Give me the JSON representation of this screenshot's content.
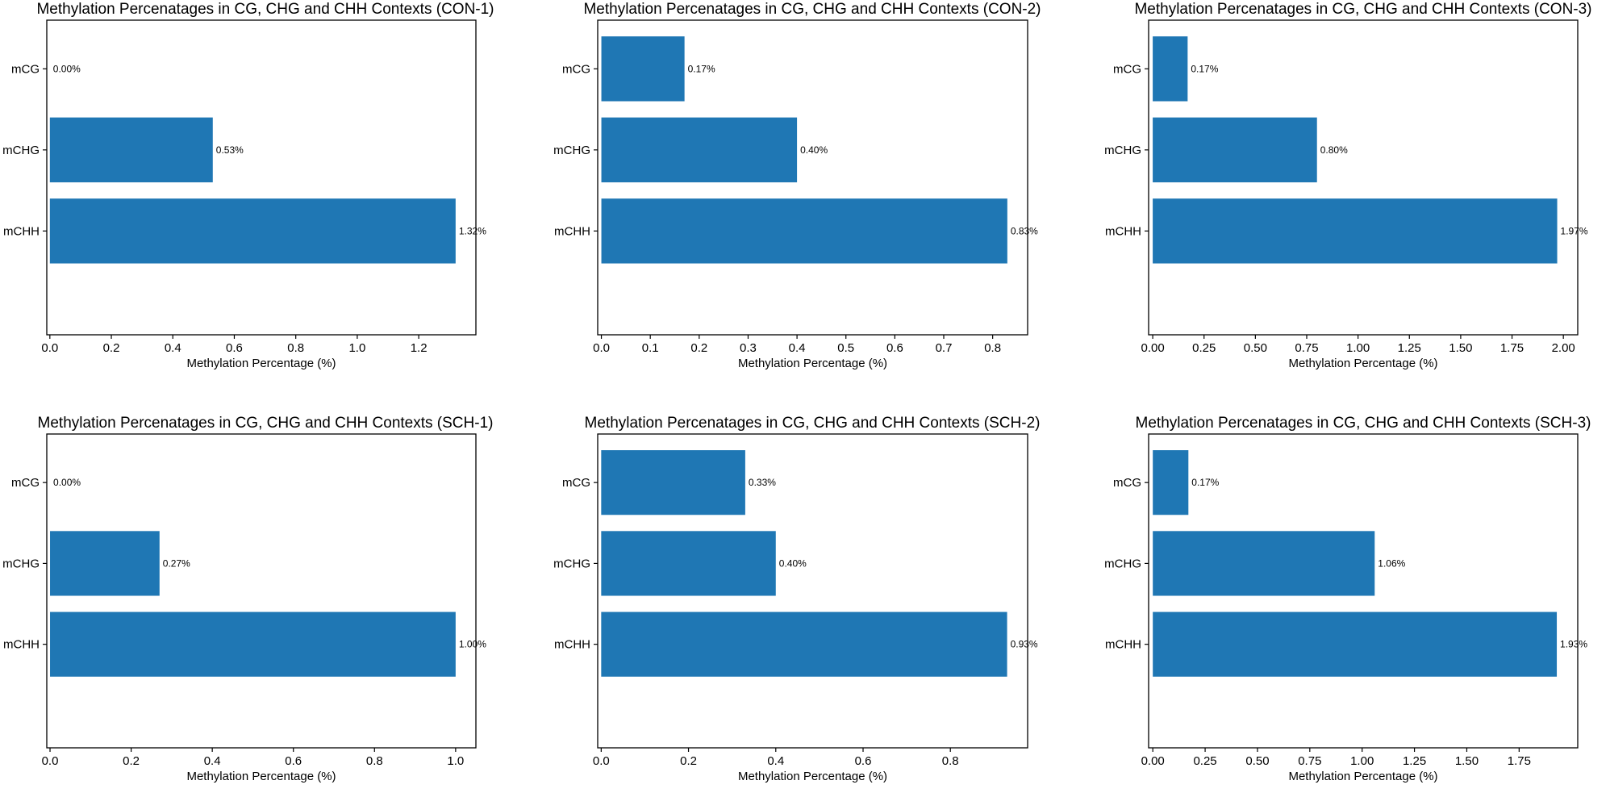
{
  "figure": {
    "bar_color": "#1f77b4",
    "axes_color": "#000000",
    "background": "#ffffff"
  },
  "chart_data": [
    {
      "type": "bar",
      "orientation": "horizontal",
      "title": "Methylation Percenatages in CG, CHG and CHH Contexts (CON-1)",
      "categories": [
        "mCG",
        "mCHG",
        "mCHH"
      ],
      "values": [
        0.0,
        0.53,
        1.32
      ],
      "value_labels": [
        "0.00%",
        "0.53%",
        "1.32%"
      ],
      "xlabel": "Methylation Percentage (%)",
      "ylabel": "",
      "xticks": [
        0.0,
        0.2,
        0.4,
        0.6,
        0.8,
        1.0,
        1.2
      ],
      "xtick_labels": [
        "0.0",
        "0.2",
        "0.4",
        "0.6",
        "0.8",
        "1.0",
        "1.2"
      ],
      "xlim": [
        -0.01,
        1.386
      ],
      "grid": false
    },
    {
      "type": "bar",
      "orientation": "horizontal",
      "title": "Methylation Percenatages in CG, CHG and CHH Contexts (CON-2)",
      "categories": [
        "mCG",
        "mCHG",
        "mCHH"
      ],
      "values": [
        0.17,
        0.4,
        0.83
      ],
      "value_labels": [
        "0.17%",
        "0.40%",
        "0.83%"
      ],
      "xlabel": "Methylation Percentage (%)",
      "ylabel": "",
      "xticks": [
        0.0,
        0.1,
        0.2,
        0.3,
        0.4,
        0.5,
        0.6,
        0.7,
        0.8
      ],
      "xtick_labels": [
        "0.0",
        "0.1",
        "0.2",
        "0.3",
        "0.4",
        "0.5",
        "0.6",
        "0.7",
        "0.8"
      ],
      "xlim": [
        -0.0075,
        0.8715
      ],
      "grid": false
    },
    {
      "type": "bar",
      "orientation": "horizontal",
      "title": "Methylation Percenatages in CG, CHG and CHH Contexts (CON-3)",
      "categories": [
        "mCG",
        "mCHG",
        "mCHH"
      ],
      "values": [
        0.17,
        0.8,
        1.97
      ],
      "value_labels": [
        "0.17%",
        "0.80%",
        "1.97%"
      ],
      "xlabel": "Methylation Percentage (%)",
      "ylabel": "",
      "xticks": [
        0.0,
        0.25,
        0.5,
        0.75,
        1.0,
        1.25,
        1.5,
        1.75,
        2.0
      ],
      "xtick_labels": [
        "0.00",
        "0.25",
        "0.50",
        "0.75",
        "1.00",
        "1.25",
        "1.50",
        "1.75",
        "2.00"
      ],
      "xlim": [
        -0.02,
        2.07
      ],
      "grid": false
    },
    {
      "type": "bar",
      "orientation": "horizontal",
      "title": "Methylation Percenatages in CG, CHG and CHH Contexts (SCH-1)",
      "categories": [
        "mCG",
        "mCHG",
        "mCHH"
      ],
      "values": [
        0.0,
        0.27,
        1.0
      ],
      "value_labels": [
        "0.00%",
        "0.27%",
        "1.00%"
      ],
      "xlabel": "Methylation Percentage (%)",
      "ylabel": "",
      "xticks": [
        0.0,
        0.2,
        0.4,
        0.6,
        0.8,
        1.0
      ],
      "xtick_labels": [
        "0.0",
        "0.2",
        "0.4",
        "0.6",
        "0.8",
        "1.0"
      ],
      "xlim": [
        -0.008,
        1.05
      ],
      "grid": false
    },
    {
      "type": "bar",
      "orientation": "horizontal",
      "title": "Methylation Percenatages in CG, CHG and CHH Contexts (SCH-2)",
      "categories": [
        "mCG",
        "mCHG",
        "mCHH"
      ],
      "values": [
        0.33,
        0.4,
        0.93
      ],
      "value_labels": [
        "0.33%",
        "0.40%",
        "0.93%"
      ],
      "xlabel": "Methylation Percentage (%)",
      "ylabel": "",
      "xticks": [
        0.0,
        0.2,
        0.4,
        0.6,
        0.8
      ],
      "xtick_labels": [
        "0.0",
        "0.2",
        "0.4",
        "0.6",
        "0.8"
      ],
      "xlim": [
        -0.008,
        0.977
      ],
      "grid": false
    },
    {
      "type": "bar",
      "orientation": "horizontal",
      "title": "Methylation Percenatages in CG, CHG and CHH Contexts (SCH-3)",
      "categories": [
        "mCG",
        "mCHG",
        "mCHH"
      ],
      "values": [
        0.17,
        1.06,
        1.93
      ],
      "value_labels": [
        "0.17%",
        "1.06%",
        "1.93%"
      ],
      "xlabel": "Methylation Percentage (%)",
      "ylabel": "",
      "xticks": [
        0.0,
        0.25,
        0.5,
        0.75,
        1.0,
        1.25,
        1.5,
        1.75
      ],
      "xtick_labels": [
        "0.00",
        "0.25",
        "0.50",
        "0.75",
        "1.00",
        "1.25",
        "1.50",
        "1.75"
      ],
      "xlim": [
        -0.02,
        2.03
      ],
      "grid": false
    }
  ]
}
